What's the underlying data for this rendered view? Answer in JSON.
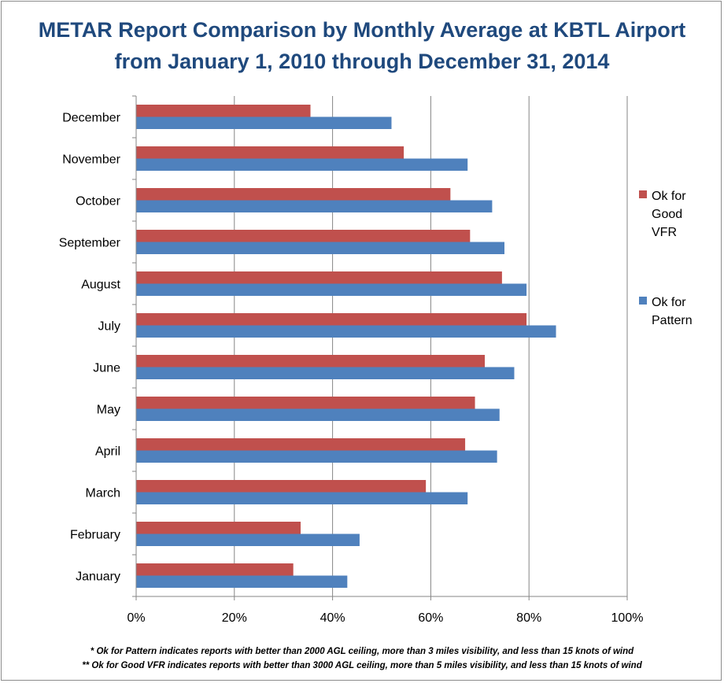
{
  "chart_data": {
    "type": "bar",
    "orientation": "horizontal",
    "title_line1": "METAR Report Comparison  by Monthly  Average at KBTL Airport",
    "title_line2": "from January  1, 2010 through December 31, 2014",
    "categories": [
      "December",
      "November",
      "October",
      "September",
      "August",
      "July",
      "June",
      "May",
      "April",
      "March",
      "February",
      "January"
    ],
    "series": [
      {
        "name": "Ok for Good VFR",
        "legend_lines": [
          "Ok for",
          "Good",
          "VFR"
        ],
        "color": "#c0504d",
        "values": [
          35.5,
          54.5,
          64,
          68,
          74.5,
          79.5,
          71,
          69,
          67,
          59,
          33.5,
          32
        ]
      },
      {
        "name": "Ok for Pattern",
        "legend_lines": [
          "Ok for",
          "Pattern"
        ],
        "color": "#4f81bd",
        "values": [
          52,
          67.5,
          72.5,
          75,
          79.5,
          85.5,
          77,
          74,
          73.5,
          67.5,
          45.5,
          43
        ]
      }
    ],
    "xlim": [
      0,
      100
    ],
    "xticks": [
      0,
      20,
      40,
      60,
      80,
      100
    ],
    "xtick_labels": [
      "0%",
      "20%",
      "40%",
      "60%",
      "80%",
      "100%"
    ],
    "grid": true,
    "legend_position": "right"
  },
  "footnotes": {
    "pattern": "* Ok for Pattern indicates reports with better than 2000 AGL ceiling, more than 3 miles visibility, and less than 15 knots of wind",
    "good_vfr": "** Ok for Good VFR indicates reports with better than 3000 AGL ceiling, more than 5 miles visibility, and less than 15 knots of wind"
  }
}
